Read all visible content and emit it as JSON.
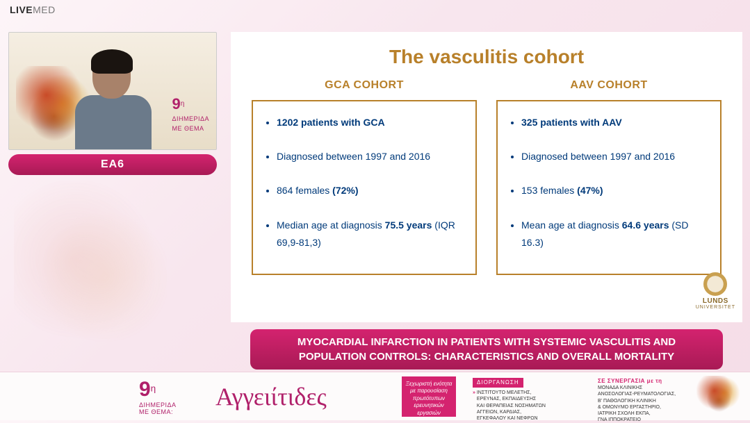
{
  "topbar": {
    "brand_a": "LIVE",
    "brand_b": "MED"
  },
  "video": {
    "event_number": "9",
    "event_sup": "η",
    "event_line1": "ΔΙΗΜΕΡΙΔΑ",
    "event_line2": "ΜΕ ΘΕΜΑ"
  },
  "label_pill": "EA6",
  "slide": {
    "title": "The vasculitis cohort",
    "left_head": "GCA COHORT",
    "right_head": "AAV COHORT",
    "left": {
      "i1_bold": "1202 patients with GCA",
      "i2": "Diagnosed between 1997 and 2016",
      "i3_a": "864 females ",
      "i3_b": "(72%)",
      "i4_a": "Median age at diagnosis ",
      "i4_b": "75.5 years",
      "i4_c": " (IQR 69,9-81,3)"
    },
    "right": {
      "i1_bold": "325 patients with AAV",
      "i2": "Diagnosed between 1997 and 2016",
      "i3_a": "153 females ",
      "i3_b": "(47%)",
      "i4_a": "Mean age at diagnosis ",
      "i4_b": "64.6 years",
      "i4_c": " (SD 16.3)"
    },
    "lunds": {
      "name": "LUNDS",
      "sub": "UNIVERSITET"
    },
    "colors": {
      "accent": "#b8802a",
      "text": "#003a7a"
    }
  },
  "talk_title": "MYOCARDIAL INFARCTION IN PATIENTS WITH SYSTEMIC VASCULITIS AND POPULATION CONTROLS: CHARACTERISTICS AND OVERALL MORTALITY",
  "footer": {
    "nine": "9",
    "nine_sup": "η",
    "dim1": "ΔΙΗΜΕΡΙΔΑ",
    "dim2": "ΜΕ ΘΕΜΑ:",
    "main_title": "Αγγειίτιδες",
    "pinkbox": "Ξεχωριστή ενότητα με παρουσίαση πρωτότυπων ερευνητικών εργασιών",
    "org_hdr": "ΔΙΟΡΓΑΝΩΣΗ",
    "org_body": "ΙΝΣΤΙΤΟΥΤΟ ΜΕΛΕΤΗΣ,\nΕΡΕΥΝΑΣ, ΕΚΠΑΙΔΕΥΣΗΣ\nΚΑΙ ΘΕΡΑΠΕΙΑΣ ΝΟΣΗΜΑΤΩΝ\nΑΓΓΕΙΩΝ, ΚΑΡΔΙΑΣ,\nΕΓΚΕΦΑΛΟΥ ΚΑΙ ΝΕΦΡΩΝ",
    "coop_hdr": "ΣΕ ΣΥΝΕΡΓΑΣΙΑ με τη",
    "coop_body": "ΜΟΝΑΔΑ ΚΛΙΝΙΚΗΣ\nΑΝΟΣΟΛΟΓΙΑΣ-ΡΕΥΜΑΤΟΛΟΓΙΑΣ,\nΒ' ΠΑΘΟΛΟΓΙΚΗ ΚΛΙΝΙΚΗ\n& ΟΜΩΝΥΜΟ ΕΡΓΑΣΤΗΡΙΟ,\nΙΑΤΡΙΚΗ ΣΧΟΛΗ ΕΚΠΑ,\nΓΝΑ ΙΠΠΟΚΡΑΤΕΙΟ"
  },
  "colors": {
    "brand": "#d4236f",
    "brand_dark": "#a81a55"
  }
}
